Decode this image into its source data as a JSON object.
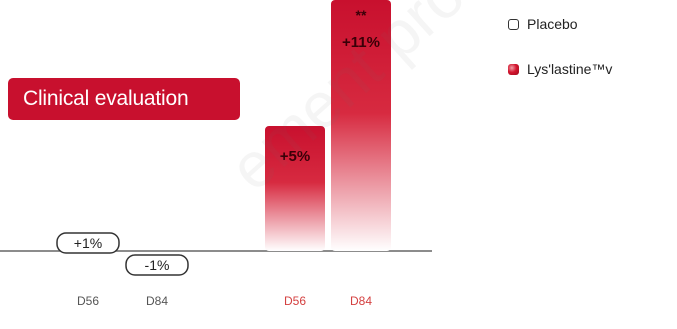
{
  "chart_data": {
    "type": "bar",
    "badge": "Clinical evaluation",
    "groups": [
      {
        "name": "Placebo",
        "style": "outline",
        "points": [
          {
            "x": "D56",
            "value": 1,
            "label": "+1%"
          },
          {
            "x": "D84",
            "value": -1,
            "label": "-1%"
          }
        ]
      },
      {
        "name": "Lys'lastine™v",
        "style": "filled",
        "points": [
          {
            "x": "D56",
            "value": 5,
            "label": "+5%"
          },
          {
            "x": "D84",
            "value": 11,
            "label": "+11%",
            "significance": "**"
          }
        ]
      }
    ],
    "ylim": [
      -1,
      11
    ]
  },
  "colors": {
    "accent": "#c8102e",
    "placebo_tick": "#555555",
    "lys_tick": "#d44040",
    "baseline": "#666666"
  },
  "watermark": "ement profession"
}
